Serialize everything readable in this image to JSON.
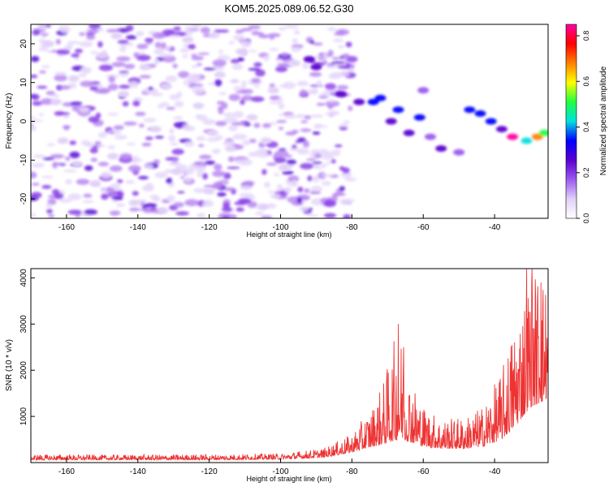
{
  "figure": {
    "title": "KOM5.2025.089.06.52.G30"
  },
  "chart_data": [
    {
      "type": "heatmap",
      "xlabel": "Height of straight line (km)",
      "ylabel": "Frequency (Hz)",
      "xlim": [
        -170,
        -25
      ],
      "ylim": [
        -25,
        25
      ],
      "xticks": [
        -160,
        -140,
        -120,
        -100,
        -80,
        -60,
        -40
      ],
      "yticks": [
        -20,
        -10,
        0,
        10,
        20
      ],
      "colorbar": {
        "label": "Normalized spectral amplitude",
        "range": [
          0.0,
          0.85
        ],
        "ticks": [
          "0.0",
          "0.2",
          "0.4",
          "0.6",
          "0.8"
        ],
        "ramp": [
          "#ffffff",
          "#e0d0f8",
          "#9b59f0",
          "#5a00d0",
          "#0000ff",
          "#00e0e0",
          "#20ff40",
          "#ffff00",
          "#ff8000",
          "#ff0000",
          "#ff00a0"
        ]
      },
      "blobs": [
        {
          "x": -165,
          "y": 20,
          "v": 0.07
        },
        {
          "x": -161,
          "y": -5,
          "v": 0.09
        },
        {
          "x": -158,
          "y": 11,
          "v": 0.11
        },
        {
          "x": -155,
          "y": 3,
          "v": 0.08
        },
        {
          "x": -152,
          "y": -16,
          "v": 0.1
        },
        {
          "x": -150,
          "y": 17,
          "v": 0.09
        },
        {
          "x": -147,
          "y": -9,
          "v": 0.12
        },
        {
          "x": -144,
          "y": 7,
          "v": 0.08
        },
        {
          "x": -141,
          "y": -21,
          "v": 0.09
        },
        {
          "x": -138,
          "y": 14,
          "v": 0.1
        },
        {
          "x": -135,
          "y": -2,
          "v": 0.11
        },
        {
          "x": -132,
          "y": 9,
          "v": 0.07
        },
        {
          "x": -129,
          "y": -13,
          "v": 0.1
        },
        {
          "x": -126,
          "y": 21,
          "v": 0.09
        },
        {
          "x": -123,
          "y": 4,
          "v": 0.12
        },
        {
          "x": -120,
          "y": -18,
          "v": 0.08
        },
        {
          "x": -117,
          "y": 12,
          "v": 0.1
        },
        {
          "x": -114,
          "y": -7,
          "v": 0.09
        },
        {
          "x": -111,
          "y": 18,
          "v": 0.11
        },
        {
          "x": -108,
          "y": 1,
          "v": 0.08
        },
        {
          "x": -105,
          "y": -22,
          "v": 0.1
        },
        {
          "x": -102,
          "y": 8,
          "v": 0.09
        },
        {
          "x": -99,
          "y": -12,
          "v": 0.1
        },
        {
          "x": -96,
          "y": 15,
          "v": 0.11
        },
        {
          "x": -163,
          "y": 5,
          "v": 0.1
        },
        {
          "x": -146,
          "y": 22,
          "v": 0.08
        },
        {
          "x": -133,
          "y": -23,
          "v": 0.09
        },
        {
          "x": -119,
          "y": -3,
          "v": 0.11
        },
        {
          "x": -104,
          "y": -5,
          "v": 0.09
        },
        {
          "x": -157,
          "y": -11,
          "v": 0.08
        },
        {
          "x": -92,
          "y": 16,
          "v": 0.28
        },
        {
          "x": -90,
          "y": 14,
          "v": 0.22
        },
        {
          "x": -86,
          "y": 9,
          "v": 0.2
        },
        {
          "x": -83,
          "y": 7,
          "v": 0.24
        },
        {
          "x": -80,
          "y": 16,
          "v": 0.18
        },
        {
          "x": -78,
          "y": 5,
          "v": 0.26
        },
        {
          "x": -74,
          "y": 5,
          "v": 0.34
        },
        {
          "x": -72,
          "y": 6,
          "v": 0.38
        },
        {
          "x": -69,
          "y": 0,
          "v": 0.26
        },
        {
          "x": -67,
          "y": 3,
          "v": 0.3
        },
        {
          "x": -64,
          "y": -3,
          "v": 0.24
        },
        {
          "x": -61,
          "y": 1,
          "v": 0.32
        },
        {
          "x": -58,
          "y": -4,
          "v": 0.2
        },
        {
          "x": -55,
          "y": -7,
          "v": 0.22
        },
        {
          "x": -60,
          "y": 8,
          "v": 0.16
        },
        {
          "x": -47,
          "y": 3,
          "v": 0.3
        },
        {
          "x": -44,
          "y": 2,
          "v": 0.34
        },
        {
          "x": -41,
          "y": 0,
          "v": 0.3
        },
        {
          "x": -38,
          "y": -2,
          "v": 0.26
        },
        {
          "x": -35,
          "y": -4,
          "v": 0.82
        },
        {
          "x": -31,
          "y": -5,
          "v": 0.4
        },
        {
          "x": -28,
          "y": -4,
          "v": 0.72
        },
        {
          "x": -26,
          "y": -3,
          "v": 0.5
        },
        {
          "x": -50,
          "y": -8,
          "v": 0.18
        }
      ]
    },
    {
      "type": "line",
      "xlabel": "Height of straight line (km)",
      "ylabel": "SNR (10 * v/v)",
      "xlim": [
        -170,
        -25
      ],
      "ylim": [
        0,
        4200
      ],
      "xticks": [
        -160,
        -140,
        -120,
        -100,
        -80,
        -60,
        -40
      ],
      "yticks": [
        1000,
        2000,
        3000,
        4000
      ],
      "color": "#ee3333",
      "x_step": 0.1,
      "envelope": [
        {
          "x": -170,
          "base": 60,
          "amp": 120
        },
        {
          "x": -150,
          "base": 60,
          "amp": 110
        },
        {
          "x": -120,
          "base": 60,
          "amp": 120
        },
        {
          "x": -100,
          "base": 70,
          "amp": 130
        },
        {
          "x": -88,
          "base": 110,
          "amp": 200
        },
        {
          "x": -80,
          "base": 220,
          "amp": 400
        },
        {
          "x": -74,
          "base": 350,
          "amp": 900
        },
        {
          "x": -71,
          "base": 400,
          "amp": 1400
        },
        {
          "x": -67,
          "base": 500,
          "amp": 2500
        },
        {
          "x": -64,
          "base": 450,
          "amp": 1500
        },
        {
          "x": -60,
          "base": 350,
          "amp": 900
        },
        {
          "x": -55,
          "base": 300,
          "amp": 650
        },
        {
          "x": -48,
          "base": 300,
          "amp": 700
        },
        {
          "x": -43,
          "base": 350,
          "amp": 900
        },
        {
          "x": -38,
          "base": 500,
          "amp": 1500
        },
        {
          "x": -34,
          "base": 800,
          "amp": 2400
        },
        {
          "x": -30,
          "base": 1200,
          "amp": 3000
        },
        {
          "x": -27,
          "base": 1300,
          "amp": 2900
        },
        {
          "x": -25,
          "base": 1400,
          "amp": 2600
        }
      ],
      "peaks": [
        {
          "x": -67,
          "y": 3000
        },
        {
          "x": -65.5,
          "y": 2500
        },
        {
          "x": -31,
          "y": 4200
        },
        {
          "x": -29.5,
          "y": 4200
        },
        {
          "x": -27,
          "y": 3900
        }
      ]
    }
  ]
}
